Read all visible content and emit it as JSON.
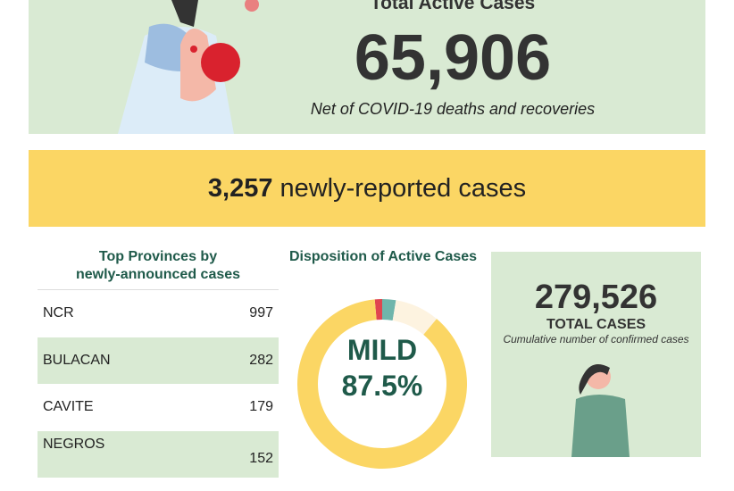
{
  "header": {
    "title": "Total Active Cases",
    "value": "65,906",
    "subtitle": "Net of COVID-19 deaths and recoveries"
  },
  "new_cases": {
    "value": "3,257",
    "label": "newly-reported cases"
  },
  "provinces": {
    "title_line1": "Top Provinces by",
    "title_line2": "newly-announced cases",
    "rows": [
      {
        "name": "NCR",
        "value": "997"
      },
      {
        "name": "BULACAN",
        "value": "282"
      },
      {
        "name": "CAVITE",
        "value": "179"
      },
      {
        "name": "NEGROS",
        "value": "152"
      }
    ]
  },
  "disposition": {
    "title": "Disposition of Active Cases",
    "label": "MILD",
    "percent": "87.5%",
    "slices": [
      {
        "value": 87.5,
        "color": "#fbd664"
      },
      {
        "value": 8.5,
        "color": "#fdf3e0"
      },
      {
        "value": 2.6,
        "color": "#6fb5ab"
      },
      {
        "value": 1.4,
        "color": "#e0454f"
      }
    ]
  },
  "total": {
    "value": "279,526",
    "label": "TOTAL CASES",
    "subtitle": "Cumulative number of confirmed cases"
  },
  "colors": {
    "panel": "#d9ead3",
    "highlight": "#fbd664",
    "heading": "#1f5a4a"
  }
}
